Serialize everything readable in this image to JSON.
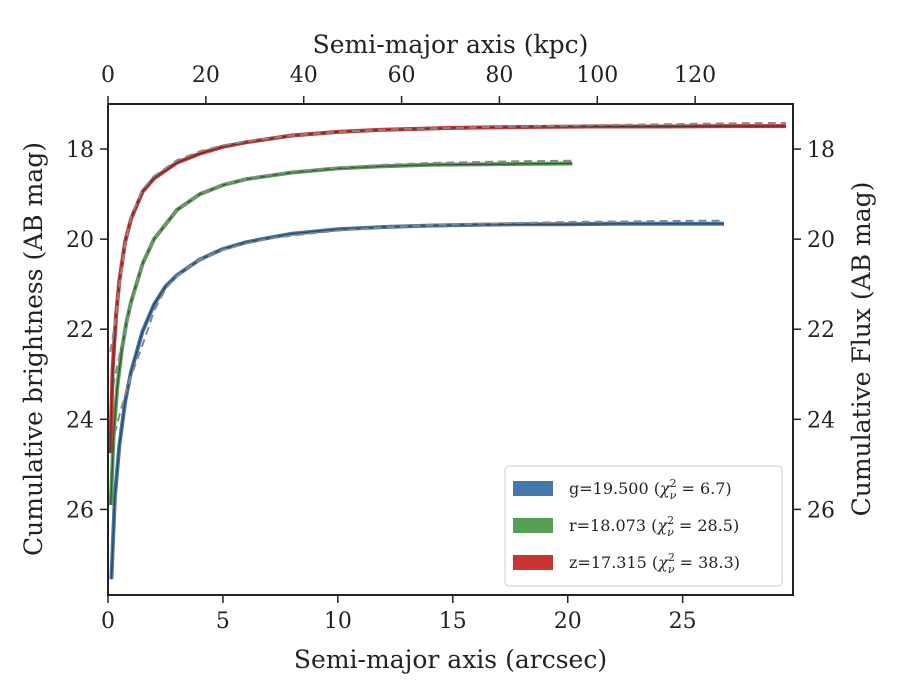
{
  "chart_data": {
    "type": "line",
    "xlabel": "Semi-major axis (arcsec)",
    "x2label": "Semi-major axis (kpc)",
    "ylabel": "Cumulative brightness (AB mag)",
    "y2label": "Cumulative Flux (AB mag)",
    "xlim": [
      0,
      29.8
    ],
    "x2lim": [
      0,
      140
    ],
    "ylim": [
      27.9,
      17.0
    ],
    "y_inverted": true,
    "xticks": [
      "0",
      "5",
      "10",
      "15",
      "20",
      "25"
    ],
    "x2ticks": [
      "0",
      "20",
      "40",
      "60",
      "80",
      "100",
      "120"
    ],
    "yticks": [
      "18",
      "20",
      "22",
      "24",
      "26"
    ],
    "legend_position": "lower-right",
    "grid": false,
    "series": [
      {
        "name": "g",
        "label_mag": "g=19.500",
        "chi2": "6.7",
        "color": "#4477aa",
        "x": [
          0.15,
          0.3,
          0.5,
          0.75,
          1.0,
          1.5,
          2.0,
          2.5,
          3.0,
          4.0,
          5.0,
          6.0,
          7.0,
          8.0,
          10.0,
          12.0,
          14.0,
          16.0,
          18.0,
          20.0,
          22.0,
          24.0,
          26.0,
          26.8
        ],
        "y": [
          27.55,
          25.7,
          24.55,
          23.6,
          22.95,
          22.05,
          21.45,
          21.05,
          20.8,
          20.45,
          20.22,
          20.07,
          19.97,
          19.88,
          19.78,
          19.73,
          19.7,
          19.68,
          19.67,
          19.67,
          19.66,
          19.66,
          19.66,
          19.66
        ],
        "fit_y": [
          24.6,
          24.3,
          23.9,
          23.45,
          23.05,
          22.35,
          21.6,
          21.1,
          20.82,
          20.45,
          20.24,
          20.1,
          19.99,
          19.92,
          19.81,
          19.74,
          19.69,
          19.66,
          19.64,
          19.62,
          19.61,
          19.6,
          19.59,
          19.59
        ]
      },
      {
        "name": "r",
        "label_mag": "r=18.073",
        "chi2": "28.5",
        "color": "#55a055",
        "x": [
          0.12,
          0.25,
          0.4,
          0.6,
          0.8,
          1.0,
          1.5,
          2.0,
          3.0,
          4.0,
          5.0,
          6.0,
          8.0,
          10.0,
          12.0,
          14.0,
          16.0,
          18.0,
          20.2
        ],
        "y": [
          25.9,
          24.3,
          23.3,
          22.45,
          21.85,
          21.4,
          20.55,
          20.0,
          19.35,
          19.0,
          18.8,
          18.67,
          18.52,
          18.43,
          18.38,
          18.35,
          18.34,
          18.33,
          18.32
        ],
        "fit_y": [
          23.55,
          23.2,
          22.8,
          22.35,
          21.9,
          21.45,
          20.55,
          20.0,
          19.35,
          19.0,
          18.79,
          18.66,
          18.5,
          18.41,
          18.35,
          18.31,
          18.29,
          18.27,
          18.26
        ]
      },
      {
        "name": "z",
        "label_mag": "z=17.315",
        "chi2": "38.3",
        "color": "#cc3333",
        "x": [
          0.1,
          0.2,
          0.35,
          0.5,
          0.75,
          1.0,
          1.5,
          2.0,
          3.0,
          4.0,
          5.0,
          6.0,
          8.0,
          10.0,
          12.0,
          15.0,
          18.0,
          21.0,
          24.0,
          27.0,
          29.5
        ],
        "y": [
          24.75,
          22.9,
          21.7,
          20.9,
          20.05,
          19.55,
          18.95,
          18.65,
          18.3,
          18.1,
          17.95,
          17.85,
          17.7,
          17.62,
          17.57,
          17.53,
          17.51,
          17.5,
          17.5,
          17.49,
          17.49
        ],
        "fit_y": [
          22.5,
          22.2,
          21.7,
          21.0,
          20.1,
          19.5,
          18.9,
          18.6,
          18.25,
          18.05,
          17.92,
          17.83,
          17.7,
          17.62,
          17.57,
          17.53,
          17.5,
          17.47,
          17.45,
          17.43,
          17.42
        ]
      }
    ]
  }
}
